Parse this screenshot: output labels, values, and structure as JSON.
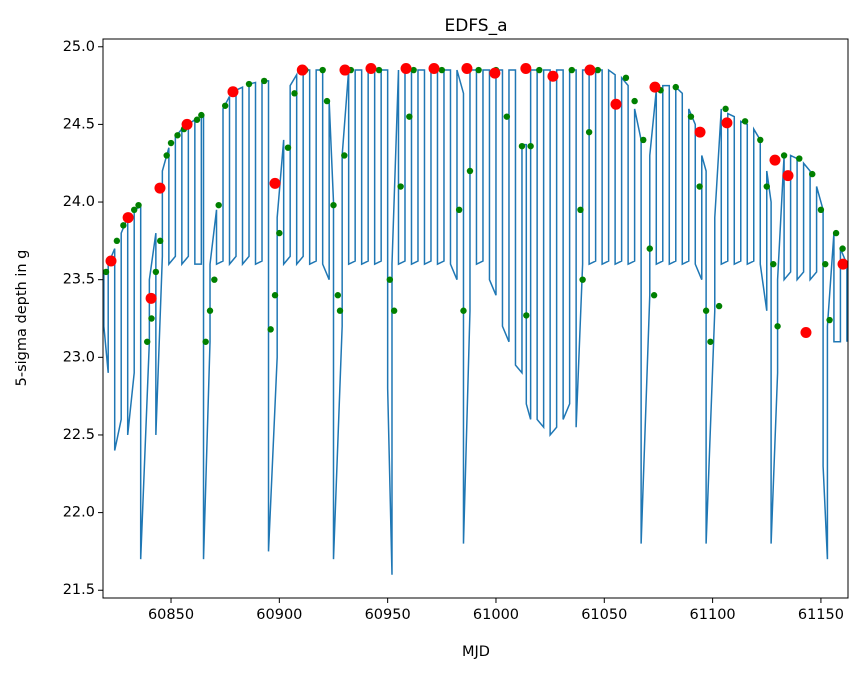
{
  "chart_data": {
    "type": "line",
    "title": "EDFS_a",
    "x_label": "MJD",
    "y_label": "5-sigma depth in g",
    "xlim": [
      60818.6,
      61162.5
    ],
    "ylim": [
      21.45,
      25.05
    ],
    "xticks": [
      60850,
      60900,
      60950,
      61000,
      61050,
      61100,
      61150
    ],
    "yticks": [
      21.5,
      {
        "value": 22.0,
        "label": "22.0"
      },
      22.5,
      {
        "value": 23.0,
        "label": "23.0"
      },
      23.5,
      {
        "value": 24.0,
        "label": "24.0"
      },
      24.5,
      {
        "value": 25.0,
        "label": "25.0"
      }
    ],
    "series": [
      {
        "kind": "line",
        "color": "#1f77b4",
        "x": [
          60819,
          60819,
          60821,
          60821,
          60824,
          60824,
          60827,
          60827,
          60830,
          60830,
          60833,
          60833,
          60836,
          60836,
          60840,
          60840,
          60843,
          60843,
          60846,
          60846,
          60849,
          60849,
          60852,
          60852,
          60855,
          60855,
          60858,
          60858,
          60861,
          60861,
          60864,
          60864,
          60865,
          60865,
          60868,
          60868,
          60871,
          60871,
          60874,
          60874,
          60877,
          60877,
          60880,
          60880,
          60883,
          60883,
          60886,
          60886,
          60889,
          60889,
          60892,
          60892,
          60895,
          60895,
          60899,
          60899,
          60902,
          60902,
          60905,
          60905,
          60908,
          60908,
          60911,
          60911,
          60914,
          60914,
          60917,
          60917,
          60920,
          60920,
          60923,
          60923,
          60925,
          60925,
          60929,
          60929,
          60932,
          60932,
          60935,
          60935,
          60938,
          60938,
          60941,
          60941,
          60944,
          60944,
          60947,
          60947,
          60950,
          60950,
          60952,
          60952,
          60955,
          60955,
          60958,
          60958,
          60961,
          60961,
          60964,
          60964,
          60967,
          60967,
          60970,
          60970,
          60973,
          60973,
          60976,
          60976,
          60979,
          60979,
          60982,
          60982,
          60985,
          60985,
          60988,
          60988,
          60991,
          60991,
          60994,
          60994,
          60997,
          60997,
          61000,
          61000,
          61003,
          61003,
          61006,
          61006,
          61009,
          61009,
          61012,
          61012,
          61014,
          61014,
          61016,
          61016,
          61019,
          61019,
          61022,
          61022,
          61025,
          61025,
          61028,
          61028,
          61031,
          61031,
          61034,
          61034,
          61037,
          61037,
          61040,
          61040,
          61043,
          61043,
          61046,
          61046,
          61049,
          61049,
          61052,
          61052,
          61055,
          61055,
          61058,
          61058,
          61061,
          61061,
          61064,
          61064,
          61067,
          61067,
          61071,
          61071,
          61074,
          61074,
          61077,
          61077,
          61080,
          61080,
          61083,
          61083,
          61086,
          61086,
          61089,
          61089,
          61092,
          61092,
          61095,
          61095,
          61097,
          61097,
          61101,
          61101,
          61104,
          61104,
          61107,
          61107,
          61110,
          61110,
          61113,
          61113,
          61116,
          61116,
          61119,
          61119,
          61122,
          61122,
          61125,
          61125,
          61127,
          61127,
          61130,
          61130,
          61133,
          61133,
          61136,
          61136,
          61139,
          61139,
          61142,
          61142,
          61145,
          61145,
          61148,
          61148,
          61151,
          61151,
          61153,
          61153,
          61156,
          61156,
          61159,
          61159,
          61162,
          61162
        ],
        "values": [
          23.55,
          23.2,
          22.9,
          23.6,
          23.7,
          22.4,
          22.6,
          23.8,
          23.9,
          22.5,
          22.9,
          23.95,
          23.97,
          21.7,
          23.1,
          23.5,
          23.8,
          22.5,
          23.65,
          24.2,
          24.35,
          23.6,
          23.65,
          24.42,
          24.47,
          23.6,
          23.65,
          24.5,
          24.53,
          23.6,
          23.6,
          24.56,
          24.56,
          21.7,
          23.1,
          23.6,
          23.95,
          23.6,
          23.62,
          24.6,
          24.68,
          23.6,
          23.65,
          24.72,
          24.74,
          23.6,
          23.65,
          24.76,
          24.77,
          23.6,
          23.62,
          24.78,
          24.78,
          21.75,
          23.0,
          23.9,
          24.4,
          23.6,
          23.65,
          24.75,
          24.82,
          23.6,
          23.65,
          24.85,
          24.85,
          23.6,
          23.62,
          24.85,
          24.85,
          23.6,
          23.5,
          24.65,
          24.0,
          21.7,
          23.2,
          24.3,
          24.85,
          23.6,
          23.62,
          24.85,
          24.85,
          23.6,
          23.62,
          24.85,
          24.85,
          23.6,
          23.62,
          24.85,
          24.85,
          22.8,
          21.6,
          23.6,
          24.85,
          23.6,
          23.62,
          24.85,
          24.85,
          23.6,
          23.62,
          24.85,
          24.85,
          23.6,
          23.62,
          24.85,
          24.85,
          23.6,
          23.62,
          24.85,
          24.85,
          23.6,
          23.5,
          24.85,
          24.7,
          21.8,
          23.3,
          24.85,
          24.85,
          23.6,
          23.62,
          24.85,
          24.85,
          23.5,
          23.4,
          24.85,
          24.85,
          23.2,
          23.1,
          24.85,
          24.85,
          22.95,
          22.9,
          24.37,
          24.37,
          22.7,
          22.6,
          24.85,
          24.85,
          22.6,
          22.55,
          24.85,
          24.85,
          22.5,
          22.55,
          24.85,
          24.85,
          22.6,
          22.7,
          24.85,
          24.85,
          22.55,
          23.6,
          24.85,
          24.85,
          23.6,
          23.62,
          24.85,
          24.85,
          23.6,
          23.62,
          24.85,
          24.82,
          23.6,
          23.62,
          24.8,
          24.75,
          23.6,
          23.62,
          24.6,
          24.4,
          21.8,
          23.4,
          24.3,
          24.72,
          23.6,
          23.62,
          24.75,
          24.75,
          23.6,
          23.62,
          24.74,
          24.7,
          23.6,
          23.62,
          24.6,
          24.5,
          23.6,
          23.5,
          24.3,
          24.2,
          21.8,
          23.3,
          23.9,
          24.6,
          23.6,
          23.62,
          24.57,
          24.55,
          23.6,
          23.62,
          24.52,
          24.5,
          23.6,
          23.62,
          24.47,
          24.4,
          23.6,
          23.3,
          24.2,
          24.0,
          21.8,
          22.9,
          23.5,
          24.3,
          23.5,
          23.55,
          24.3,
          24.28,
          23.5,
          23.55,
          24.25,
          24.2,
          23.5,
          23.55,
          24.1,
          23.95,
          22.3,
          21.7,
          23.2,
          23.8,
          23.1,
          23.1,
          23.7,
          23.6,
          23.1
        ]
      },
      {
        "kind": "scatter",
        "color": "#008000",
        "x": [
          60820,
          60825,
          60828,
          60833,
          60835,
          60839,
          60841,
          60843,
          60845,
          60848,
          60850,
          60853,
          60856,
          60862,
          60864,
          60866,
          60868,
          60870,
          60872,
          60875,
          60879,
          60886,
          60893,
          60896,
          60898,
          60900,
          60904,
          60907,
          60912,
          60920,
          60922,
          60925,
          60927,
          60928,
          60930,
          60933,
          60946,
          60951,
          60953,
          60956,
          60960,
          60962,
          60975,
          60983,
          60985,
          60988,
          60992,
          61000,
          61005,
          61012,
          61014,
          61016,
          61020,
          61035,
          61039,
          61040,
          61043,
          61047,
          61060,
          61064,
          61068,
          61071,
          61073,
          61076,
          61083,
          61090,
          61094,
          61097,
          61099,
          61103,
          61106,
          61115,
          61122,
          61125,
          61128,
          61130,
          61133,
          61140,
          61146,
          61150,
          61152,
          61154,
          61157,
          61160
        ],
        "values": [
          23.55,
          23.75,
          23.85,
          23.95,
          23.98,
          23.1,
          23.25,
          23.55,
          23.75,
          24.3,
          24.38,
          24.43,
          24.47,
          24.53,
          24.56,
          23.1,
          23.3,
          23.5,
          23.98,
          24.62,
          24.7,
          24.76,
          24.78,
          23.18,
          23.4,
          23.8,
          24.35,
          24.7,
          24.85,
          24.85,
          24.65,
          23.98,
          23.4,
          23.3,
          24.3,
          24.85,
          24.85,
          23.5,
          23.3,
          24.1,
          24.55,
          24.85,
          24.85,
          23.95,
          23.3,
          24.2,
          24.85,
          24.85,
          24.55,
          24.36,
          23.27,
          24.36,
          24.85,
          24.85,
          23.95,
          23.5,
          24.45,
          24.85,
          24.8,
          24.65,
          24.4,
          23.7,
          23.4,
          24.72,
          24.74,
          24.55,
          24.1,
          23.3,
          23.1,
          23.33,
          24.6,
          24.52,
          24.4,
          24.1,
          23.6,
          23.2,
          24.3,
          24.28,
          24.18,
          23.95,
          23.6,
          23.24,
          23.8,
          23.7
        ]
      },
      {
        "kind": "scatter",
        "color": "#ff0000",
        "x": [
          60822.3,
          60830.2,
          60840.8,
          60844.9,
          60857.4,
          60878.6,
          60898.0,
          60910.6,
          60930.3,
          60942.3,
          60958.5,
          60971.4,
          60986.6,
          60999.5,
          61013.8,
          61026.3,
          61043.4,
          61055.4,
          61073.4,
          61094.2,
          61106.6,
          61128.8,
          61134.8,
          61143.1,
          61160.2
        ],
        "values": [
          23.62,
          23.9,
          23.38,
          24.09,
          24.5,
          24.71,
          24.12,
          24.85,
          24.85,
          24.86,
          24.86,
          24.86,
          24.86,
          24.83,
          24.86,
          24.81,
          24.85,
          24.63,
          24.74,
          24.45,
          24.51,
          24.27,
          24.17,
          23.16,
          23.6
        ]
      }
    ]
  }
}
